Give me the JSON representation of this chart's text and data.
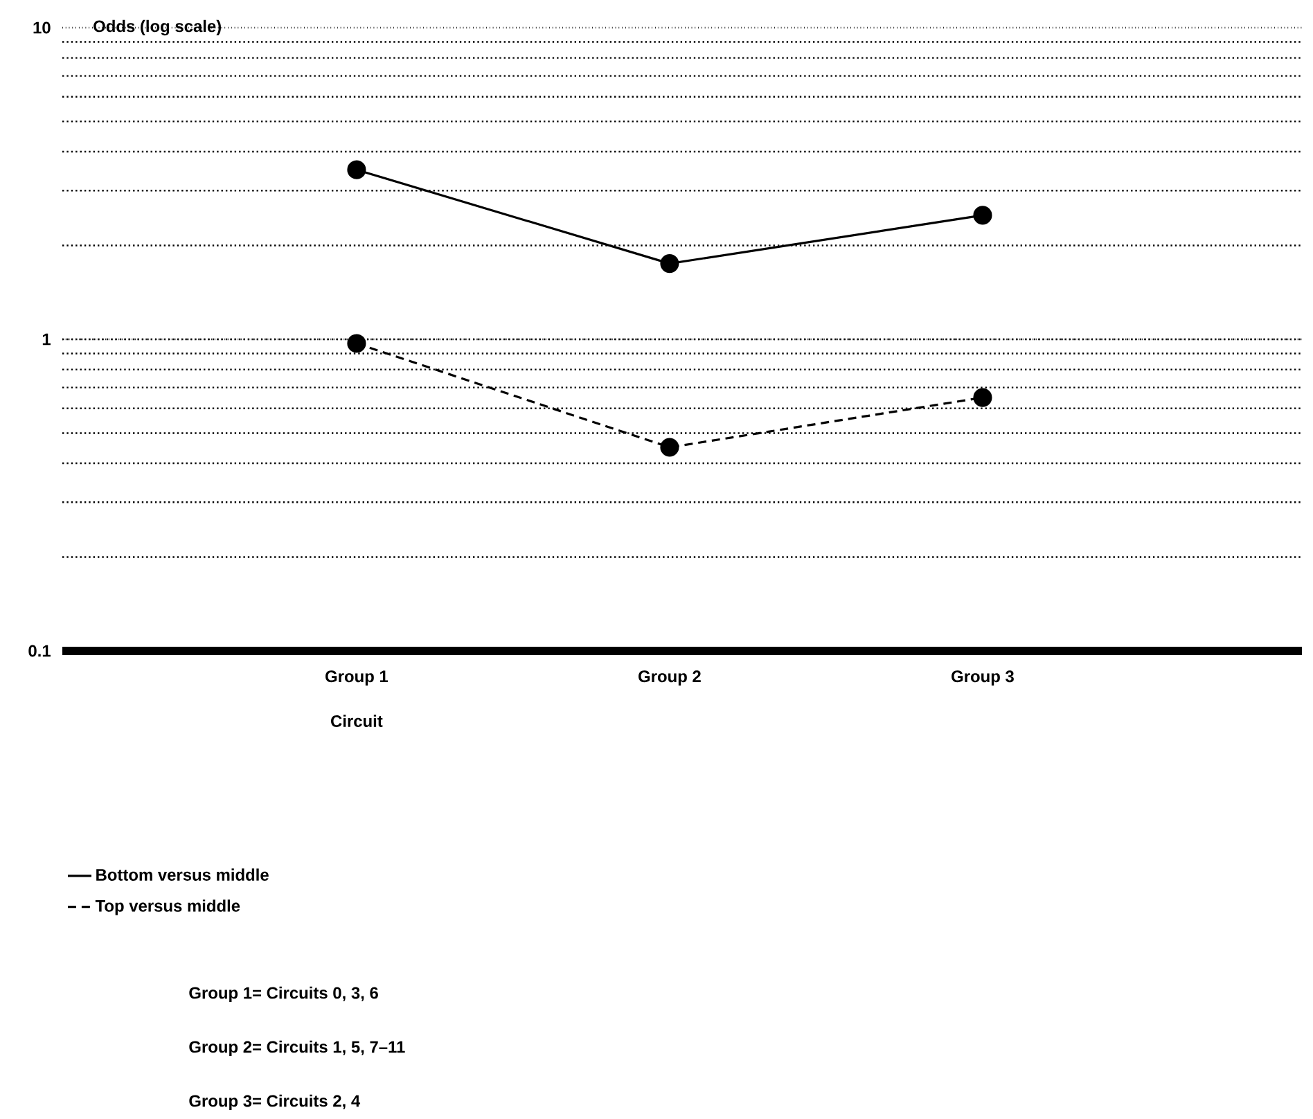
{
  "chart_data": {
    "type": "line",
    "ylabel": "Odds (log scale)",
    "xlabel": "Circuit",
    "categories": [
      "Group 1",
      "Group 2",
      "Group 3"
    ],
    "series": [
      {
        "name": "Bottom versus middle",
        "color": "#000000",
        "values": [
          3.5,
          1.75,
          2.5
        ],
        "line_style": "solid"
      },
      {
        "name": "Top versus middle",
        "color": "#000000",
        "values": [
          0.97,
          0.45,
          0.65
        ],
        "line_style": "dashed"
      }
    ],
    "log": true,
    "ylim": [
      0.1,
      10
    ],
    "yticks": [
      0.1,
      1,
      10
    ],
    "grid": "y",
    "marker": "circle",
    "legend": "bottom",
    "annotations": [
      "Group 1= Circuits 0, 3, 6",
      "Group 2= Circuits 1, 5, 7–11",
      "Group 3= Circuits 2, 4"
    ]
  }
}
